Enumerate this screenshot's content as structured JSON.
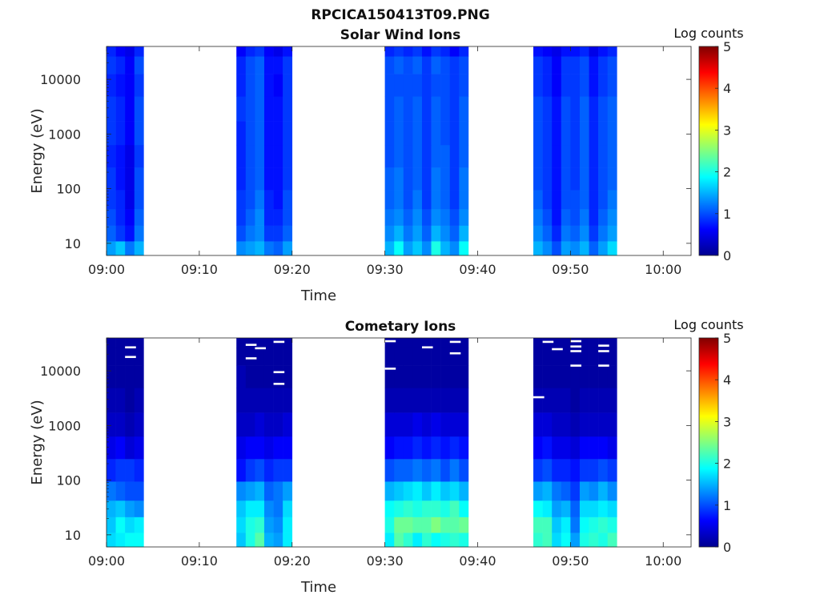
{
  "figure_title": "RPCICA150413T09.PNG",
  "colormap": [
    "#00008f",
    "#0000ff",
    "#0080ff",
    "#00ffff",
    "#80ff80",
    "#ffff00",
    "#ff8000",
    "#ff0000",
    "#800000"
  ],
  "chart_data": [
    {
      "type": "heatmap",
      "title": "Solar Wind Ions",
      "xlabel": "Time",
      "ylabel": "Energy (eV)",
      "xlim": [
        "09:00",
        "10:03"
      ],
      "ylim": [
        6,
        40000
      ],
      "yscale": "log",
      "xticks": [
        "09:00",
        "09:10",
        "09:20",
        "09:30",
        "09:40",
        "09:50",
        "10:00"
      ],
      "yticks": [
        "10",
        "100",
        "1000",
        "10000"
      ],
      "colorbar": {
        "label": "Log counts",
        "range": [
          0,
          5
        ],
        "ticks": [
          "0",
          "1",
          "2",
          "3",
          "4",
          "5"
        ]
      },
      "data_intervals": [
        [
          "09:00",
          "09:04"
        ],
        [
          "09:14",
          "09:20"
        ],
        [
          "09:30",
          "09:39"
        ],
        [
          "09:46",
          "09:55"
        ]
      ],
      "energy_bins": [
        8,
        15,
        30,
        60,
        150,
        400,
        1000,
        3000,
        8000,
        20000,
        35000
      ],
      "time_bins": [
        "09:00",
        "09:01",
        "09:02",
        "09:03",
        "09:14",
        "09:15",
        "09:16",
        "09:17",
        "09:18",
        "09:19",
        "09:30",
        "09:31",
        "09:32",
        "09:33",
        "09:34",
        "09:35",
        "09:36",
        "09:37",
        "09:38",
        "09:46",
        "09:47",
        "09:48",
        "09:49",
        "09:50",
        "09:51",
        "09:52",
        "09:53",
        "09:54"
      ],
      "log_counts": [
        [
          1.4,
          1.1,
          1.0,
          0.9,
          0.9,
          0.8,
          0.9,
          0.9,
          0.8,
          0.9,
          0.8
        ],
        [
          1.6,
          0.9,
          0.8,
          0.8,
          0.7,
          0.7,
          0.8,
          0.8,
          0.7,
          0.8,
          0.6
        ],
        [
          1.2,
          0.7,
          0.6,
          0.5,
          0.5,
          0.5,
          0.6,
          0.6,
          0.6,
          0.6,
          0.5
        ],
        [
          1.5,
          1.2,
          1.1,
          1.0,
          1.0,
          0.9,
          1.0,
          1.0,
          0.9,
          1.0,
          0.8
        ],
        [
          1.3,
          1.0,
          0.9,
          0.9,
          0.8,
          0.8,
          0.8,
          0.9,
          0.8,
          0.8,
          0.6
        ],
        [
          1.4,
          1.2,
          1.1,
          1.0,
          1.0,
          1.0,
          1.0,
          1.0,
          1.0,
          1.0,
          0.8
        ],
        [
          1.5,
          1.3,
          1.3,
          1.2,
          1.1,
          1.1,
          1.1,
          1.1,
          1.1,
          1.1,
          0.9
        ],
        [
          1.2,
          0.9,
          0.8,
          0.8,
          0.7,
          0.7,
          0.7,
          0.7,
          0.7,
          0.7,
          0.6
        ],
        [
          1.1,
          0.9,
          0.8,
          0.7,
          0.7,
          0.7,
          0.7,
          0.7,
          0.6,
          0.7,
          0.5
        ],
        [
          1.4,
          1.1,
          1.0,
          1.0,
          0.9,
          0.9,
          0.9,
          0.9,
          0.9,
          0.9,
          0.7
        ],
        [
          1.5,
          1.3,
          1.2,
          1.1,
          1.1,
          1.0,
          1.0,
          1.0,
          1.0,
          1.0,
          0.8
        ],
        [
          1.9,
          1.5,
          1.3,
          1.2,
          1.2,
          1.1,
          1.1,
          1.1,
          1.0,
          1.1,
          0.9
        ],
        [
          1.4,
          1.2,
          1.1,
          1.0,
          1.0,
          1.0,
          1.0,
          1.0,
          1.0,
          1.0,
          0.8
        ],
        [
          1.6,
          1.4,
          1.3,
          1.2,
          1.1,
          1.1,
          1.1,
          1.1,
          1.0,
          1.1,
          0.9
        ],
        [
          1.3,
          1.1,
          1.0,
          0.9,
          0.9,
          0.9,
          0.9,
          0.9,
          0.9,
          0.9,
          0.7
        ],
        [
          2.0,
          1.5,
          1.3,
          1.2,
          1.2,
          1.1,
          1.1,
          1.1,
          1.0,
          1.1,
          0.9
        ],
        [
          1.5,
          1.3,
          1.2,
          1.1,
          1.1,
          1.1,
          1.0,
          1.0,
          1.0,
          1.0,
          0.8
        ],
        [
          1.3,
          1.1,
          1.0,
          0.9,
          0.9,
          0.9,
          0.9,
          0.9,
          0.9,
          0.9,
          0.6
        ],
        [
          1.9,
          1.5,
          1.3,
          1.2,
          1.2,
          1.1,
          1.1,
          1.1,
          1.0,
          1.0,
          0.8
        ],
        [
          1.5,
          1.3,
          1.2,
          1.1,
          1.0,
          1.0,
          1.0,
          1.0,
          0.9,
          0.9,
          0.7
        ],
        [
          1.3,
          1.1,
          1.0,
          0.9,
          0.9,
          0.9,
          0.9,
          0.9,
          0.8,
          0.8,
          0.6
        ],
        [
          1.0,
          0.8,
          0.7,
          0.7,
          0.7,
          0.7,
          0.7,
          0.7,
          0.6,
          0.6,
          0.5
        ],
        [
          1.4,
          1.2,
          1.1,
          1.0,
          1.0,
          1.0,
          1.0,
          1.0,
          0.9,
          0.9,
          0.7
        ],
        [
          1.3,
          1.1,
          1.0,
          1.0,
          0.9,
          0.9,
          0.9,
          0.9,
          0.9,
          0.9,
          0.7
        ],
        [
          1.5,
          1.3,
          1.2,
          1.1,
          1.1,
          1.1,
          1.1,
          1.1,
          1.0,
          1.0,
          0.8
        ],
        [
          1.1,
          0.9,
          0.8,
          0.8,
          0.8,
          0.8,
          0.8,
          0.8,
          0.7,
          0.7,
          0.5
        ],
        [
          1.4,
          1.2,
          1.1,
          1.0,
          1.0,
          1.0,
          1.0,
          1.0,
          0.9,
          0.9,
          0.7
        ],
        [
          1.7,
          1.4,
          1.3,
          1.2,
          1.1,
          1.1,
          1.1,
          1.1,
          1.0,
          1.0,
          0.8
        ]
      ]
    },
    {
      "type": "heatmap",
      "title": "Cometary Ions",
      "xlabel": "Time",
      "ylabel": "Energy (eV)",
      "xlim": [
        "09:00",
        "10:03"
      ],
      "ylim": [
        6,
        40000
      ],
      "yscale": "log",
      "xticks": [
        "09:00",
        "09:10",
        "09:20",
        "09:30",
        "09:40",
        "09:50",
        "10:00"
      ],
      "yticks": [
        "10",
        "100",
        "1000",
        "10000"
      ],
      "colorbar": {
        "label": "Log counts",
        "range": [
          0,
          5
        ],
        "ticks": [
          "0",
          "1",
          "2",
          "3",
          "4",
          "5"
        ]
      },
      "data_intervals": [
        [
          "09:00",
          "09:04"
        ],
        [
          "09:14",
          "09:20"
        ],
        [
          "09:30",
          "09:39"
        ],
        [
          "09:46",
          "09:55"
        ]
      ],
      "energy_bins": [
        8,
        15,
        30,
        60,
        150,
        400,
        1000,
        3000,
        8000,
        20000,
        35000
      ],
      "time_bins": [
        "09:00",
        "09:01",
        "09:02",
        "09:03",
        "09:14",
        "09:15",
        "09:16",
        "09:17",
        "09:18",
        "09:19",
        "09:30",
        "09:31",
        "09:32",
        "09:33",
        "09:34",
        "09:35",
        "09:36",
        "09:37",
        "09:38",
        "09:46",
        "09:47",
        "09:48",
        "09:49",
        "09:50",
        "09:51",
        "09:52",
        "09:53",
        "09:54"
      ],
      "log_counts": [
        [
          1.7,
          1.6,
          1.5,
          1.2,
          0.8,
          0.5,
          0.3,
          0.2,
          0.1,
          0.1,
          0.1
        ],
        [
          1.8,
          1.9,
          1.6,
          1.1,
          0.9,
          0.6,
          0.3,
          0.2,
          0.1,
          0.1,
          0.1
        ],
        [
          1.9,
          1.7,
          1.4,
          1.0,
          0.9,
          0.4,
          0.2,
          0.1,
          0.1,
          0.1,
          0.1
        ],
        [
          1.9,
          1.8,
          1.3,
          1.0,
          0.8,
          0.5,
          0.3,
          0.2,
          0.1,
          0.1,
          0.1
        ],
        [
          1.6,
          1.7,
          1.6,
          1.3,
          0.7,
          0.5,
          0.3,
          0.2,
          0.2,
          0.1,
          0.1
        ],
        [
          2.0,
          2.0,
          1.8,
          1.4,
          0.9,
          0.6,
          0.3,
          0.2,
          0.1,
          0.1,
          0.1
        ],
        [
          2.3,
          2.1,
          1.8,
          1.5,
          1.0,
          0.6,
          0.4,
          0.2,
          0.1,
          0.1,
          0.1
        ],
        [
          1.5,
          1.4,
          1.3,
          1.1,
          0.8,
          0.5,
          0.3,
          0.2,
          0.1,
          0.1,
          0.1
        ],
        [
          1.4,
          1.3,
          1.2,
          1.2,
          0.9,
          0.6,
          0.3,
          0.2,
          0.1,
          0.1,
          0.1
        ],
        [
          1.8,
          1.8,
          1.7,
          1.4,
          0.9,
          0.6,
          0.4,
          0.2,
          0.1,
          0.1,
          0.1
        ],
        [
          1.8,
          2.0,
          1.9,
          1.5,
          1.0,
          0.6,
          0.4,
          0.2,
          0.1,
          0.1,
          0.1
        ],
        [
          2.3,
          2.4,
          2.0,
          1.6,
          1.1,
          0.7,
          0.4,
          0.2,
          0.1,
          0.1,
          0.1
        ],
        [
          2.1,
          2.4,
          2.1,
          1.7,
          1.1,
          0.7,
          0.4,
          0.2,
          0.1,
          0.1,
          0.1
        ],
        [
          1.8,
          2.3,
          2.0,
          1.8,
          1.2,
          0.8,
          0.5,
          0.2,
          0.1,
          0.1,
          0.1
        ],
        [
          2.1,
          2.3,
          2.1,
          1.6,
          1.1,
          0.7,
          0.4,
          0.2,
          0.1,
          0.1,
          0.1
        ],
        [
          1.9,
          2.5,
          2.1,
          1.8,
          1.2,
          0.8,
          0.5,
          0.2,
          0.1,
          0.1,
          0.1
        ],
        [
          2.0,
          2.3,
          2.0,
          1.6,
          1.0,
          0.7,
          0.4,
          0.2,
          0.1,
          0.1,
          0.1
        ],
        [
          2.1,
          2.3,
          2.2,
          1.7,
          1.2,
          0.8,
          0.4,
          0.2,
          0.1,
          0.1,
          0.1
        ],
        [
          2.0,
          2.4,
          1.9,
          1.5,
          1.0,
          0.7,
          0.4,
          0.2,
          0.1,
          0.1,
          0.1
        ],
        [
          2.1,
          2.2,
          1.9,
          1.4,
          0.9,
          0.6,
          0.4,
          0.2,
          0.1,
          0.1,
          0.1
        ],
        [
          2.2,
          2.2,
          1.8,
          1.5,
          1.0,
          0.7,
          0.4,
          0.2,
          0.1,
          0.1,
          0.1
        ],
        [
          1.7,
          1.6,
          1.4,
          1.2,
          0.8,
          0.5,
          0.3,
          0.2,
          0.1,
          0.1,
          0.1
        ],
        [
          1.9,
          1.8,
          1.5,
          1.1,
          0.8,
          0.5,
          0.3,
          0.2,
          0.1,
          0.1,
          0.1
        ],
        [
          1.4,
          1.2,
          1.1,
          0.9,
          0.7,
          0.4,
          0.2,
          0.1,
          0.1,
          0.1,
          0.1
        ],
        [
          2.0,
          1.9,
          1.7,
          1.4,
          0.9,
          0.6,
          0.3,
          0.2,
          0.1,
          0.1,
          0.1
        ],
        [
          2.1,
          2.0,
          1.7,
          1.3,
          0.9,
          0.6,
          0.3,
          0.2,
          0.1,
          0.1,
          0.1
        ],
        [
          2.0,
          2.1,
          1.8,
          1.5,
          1.0,
          0.6,
          0.3,
          0.2,
          0.1,
          0.1,
          0.1
        ],
        [
          2.2,
          2.0,
          1.7,
          1.3,
          0.9,
          0.5,
          0.3,
          0.2,
          0.1,
          0.1,
          0.1
        ]
      ],
      "white_marks": [
        [
          "09:02",
          27000
        ],
        [
          "09:02",
          18000
        ],
        [
          "09:15",
          30000
        ],
        [
          "09:15",
          17000
        ],
        [
          "09:16",
          26000
        ],
        [
          "09:18",
          34000
        ],
        [
          "09:18",
          9500
        ],
        [
          "09:18",
          5800
        ],
        [
          "09:30",
          35000
        ],
        [
          "09:30",
          11000
        ],
        [
          "09:34",
          27000
        ],
        [
          "09:37",
          34000
        ],
        [
          "09:37",
          21000
        ],
        [
          "09:47",
          34000
        ],
        [
          "09:48",
          25000
        ],
        [
          "09:46",
          3300
        ],
        [
          "09:50",
          35000
        ],
        [
          "09:50",
          28000
        ],
        [
          "09:50",
          23000
        ],
        [
          "09:50",
          12500
        ],
        [
          "09:53",
          29000
        ],
        [
          "09:53",
          23000
        ],
        [
          "09:53",
          12500
        ]
      ]
    }
  ]
}
